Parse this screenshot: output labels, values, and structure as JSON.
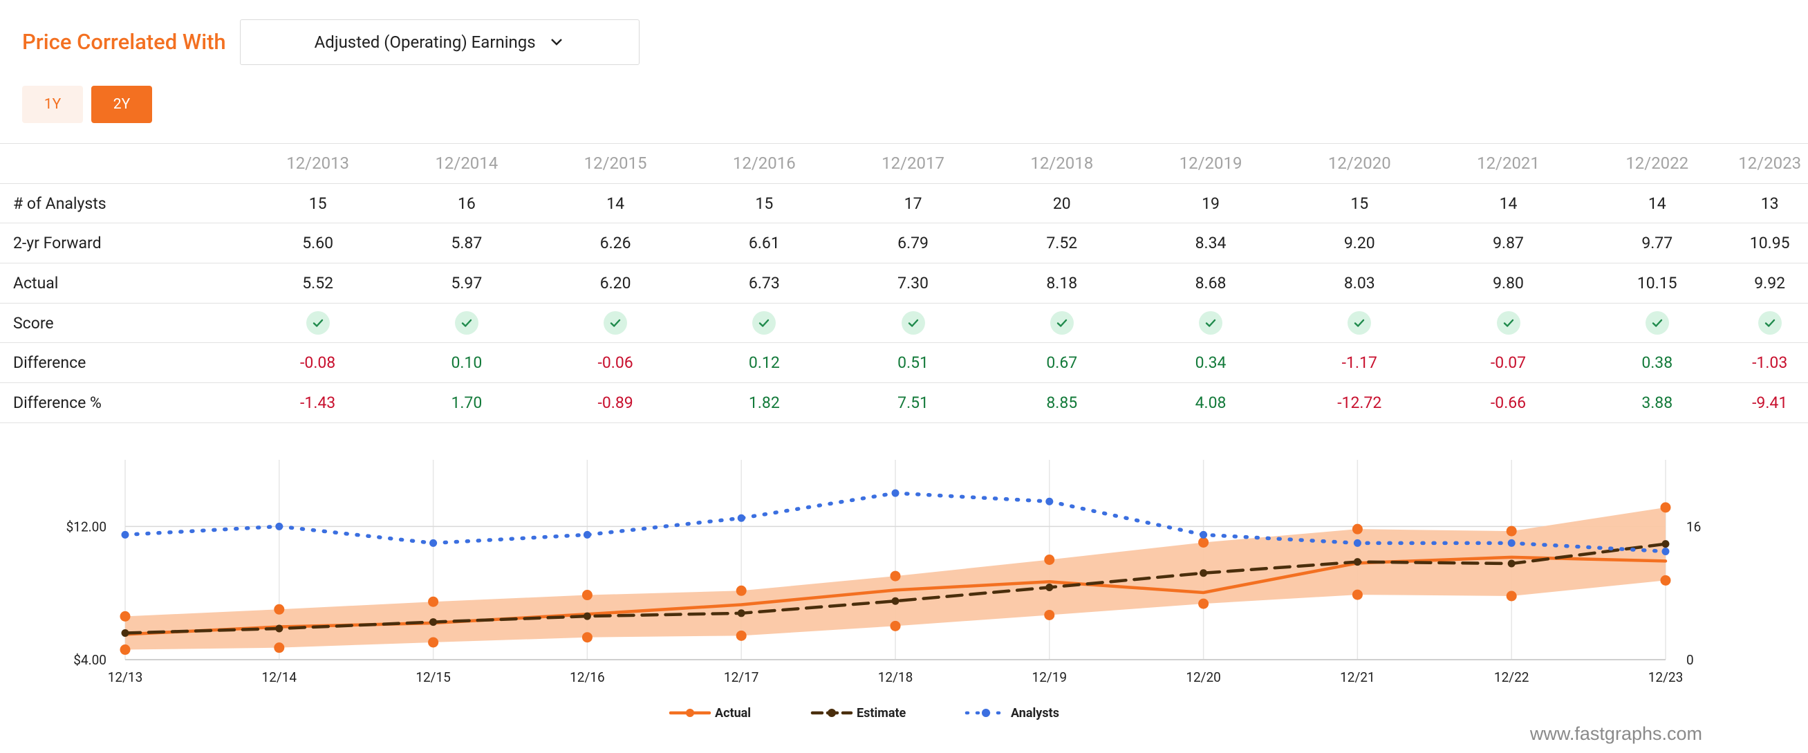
{
  "header": {
    "title": "Price Correlated With",
    "select_value": "Adjusted (Operating) Earnings"
  },
  "period_buttons": [
    {
      "label": "1Y",
      "active": false
    },
    {
      "label": "2Y",
      "active": true
    }
  ],
  "table": {
    "columns": [
      "12/2013",
      "12/2014",
      "12/2015",
      "12/2016",
      "12/2017",
      "12/2018",
      "12/2019",
      "12/2020",
      "12/2021",
      "12/2022",
      "12/2023"
    ],
    "rows": [
      {
        "label": "# of Analysts",
        "values": [
          "15",
          "16",
          "14",
          "15",
          "17",
          "20",
          "19",
          "15",
          "14",
          "14",
          "13"
        ]
      },
      {
        "label": "2-yr Forward",
        "values": [
          "5.60",
          "5.87",
          "6.26",
          "6.61",
          "6.79",
          "7.52",
          "8.34",
          "9.20",
          "9.87",
          "9.77",
          "10.95"
        ]
      },
      {
        "label": "Actual",
        "values": [
          "5.52",
          "5.97",
          "6.20",
          "6.73",
          "7.30",
          "8.18",
          "8.68",
          "8.03",
          "9.80",
          "10.15",
          "9.92"
        ]
      },
      {
        "label": "Score",
        "values": [
          "check",
          "check",
          "check",
          "check",
          "check",
          "check",
          "check",
          "check",
          "check",
          "check",
          "check"
        ]
      },
      {
        "label": "Difference",
        "values": [
          "-0.08",
          "0.10",
          "-0.06",
          "0.12",
          "0.51",
          "0.67",
          "0.34",
          "-1.17",
          "-0.07",
          "0.38",
          "-1.03"
        ]
      },
      {
        "label": "Difference %",
        "values": [
          "-1.43",
          "1.70",
          "-0.89",
          "1.82",
          "7.51",
          "8.85",
          "4.08",
          "-12.72",
          "-0.66",
          "3.88",
          "-9.41"
        ]
      }
    ]
  },
  "colors": {
    "accent": "#f37021",
    "band": "#fbc7a4",
    "estimate": "#4a2e0c",
    "analysts": "#3b6fe0",
    "positive": "#137a3a",
    "negative": "#c8102e"
  },
  "chart_data": {
    "type": "line",
    "x": [
      "12/13",
      "12/14",
      "12/15",
      "12/16",
      "12/17",
      "12/18",
      "12/19",
      "12/20",
      "12/21",
      "12/22",
      "12/23"
    ],
    "y_left": {
      "min": 4,
      "max": 16,
      "labels": [
        "$4.00",
        "$12.00"
      ],
      "label_values": [
        4,
        12
      ]
    },
    "y_right": {
      "min": 0,
      "max": 24,
      "labels": [
        "0",
        "16"
      ],
      "label_values": [
        0,
        16
      ]
    },
    "series": [
      {
        "name": "Actual",
        "axis": "left",
        "style": "solid",
        "values": [
          5.52,
          5.97,
          6.2,
          6.73,
          7.3,
          8.18,
          8.68,
          8.03,
          9.8,
          10.15,
          9.92
        ]
      },
      {
        "name": "Estimate",
        "axis": "left",
        "style": "dashed",
        "values": [
          5.6,
          5.87,
          6.26,
          6.61,
          6.79,
          7.52,
          8.34,
          9.2,
          9.87,
          9.77,
          10.95
        ]
      },
      {
        "name": "Analysts",
        "axis": "right",
        "style": "dotted",
        "values": [
          15,
          16,
          14,
          15,
          17,
          20,
          19,
          15,
          14,
          14,
          13
        ]
      }
    ],
    "band": {
      "upper": [
        6.6,
        7.02,
        7.48,
        7.88,
        8.14,
        9.02,
        10.0,
        11.04,
        11.84,
        11.72,
        13.14
      ],
      "lower": [
        4.6,
        4.72,
        5.04,
        5.34,
        5.44,
        6.02,
        6.68,
        7.36,
        7.9,
        7.82,
        8.76
      ]
    },
    "legend": [
      "Actual",
      "Estimate",
      "Analysts"
    ],
    "legend_position": "bottom",
    "grid": true
  },
  "watermark": "www.fastgraphs.com"
}
